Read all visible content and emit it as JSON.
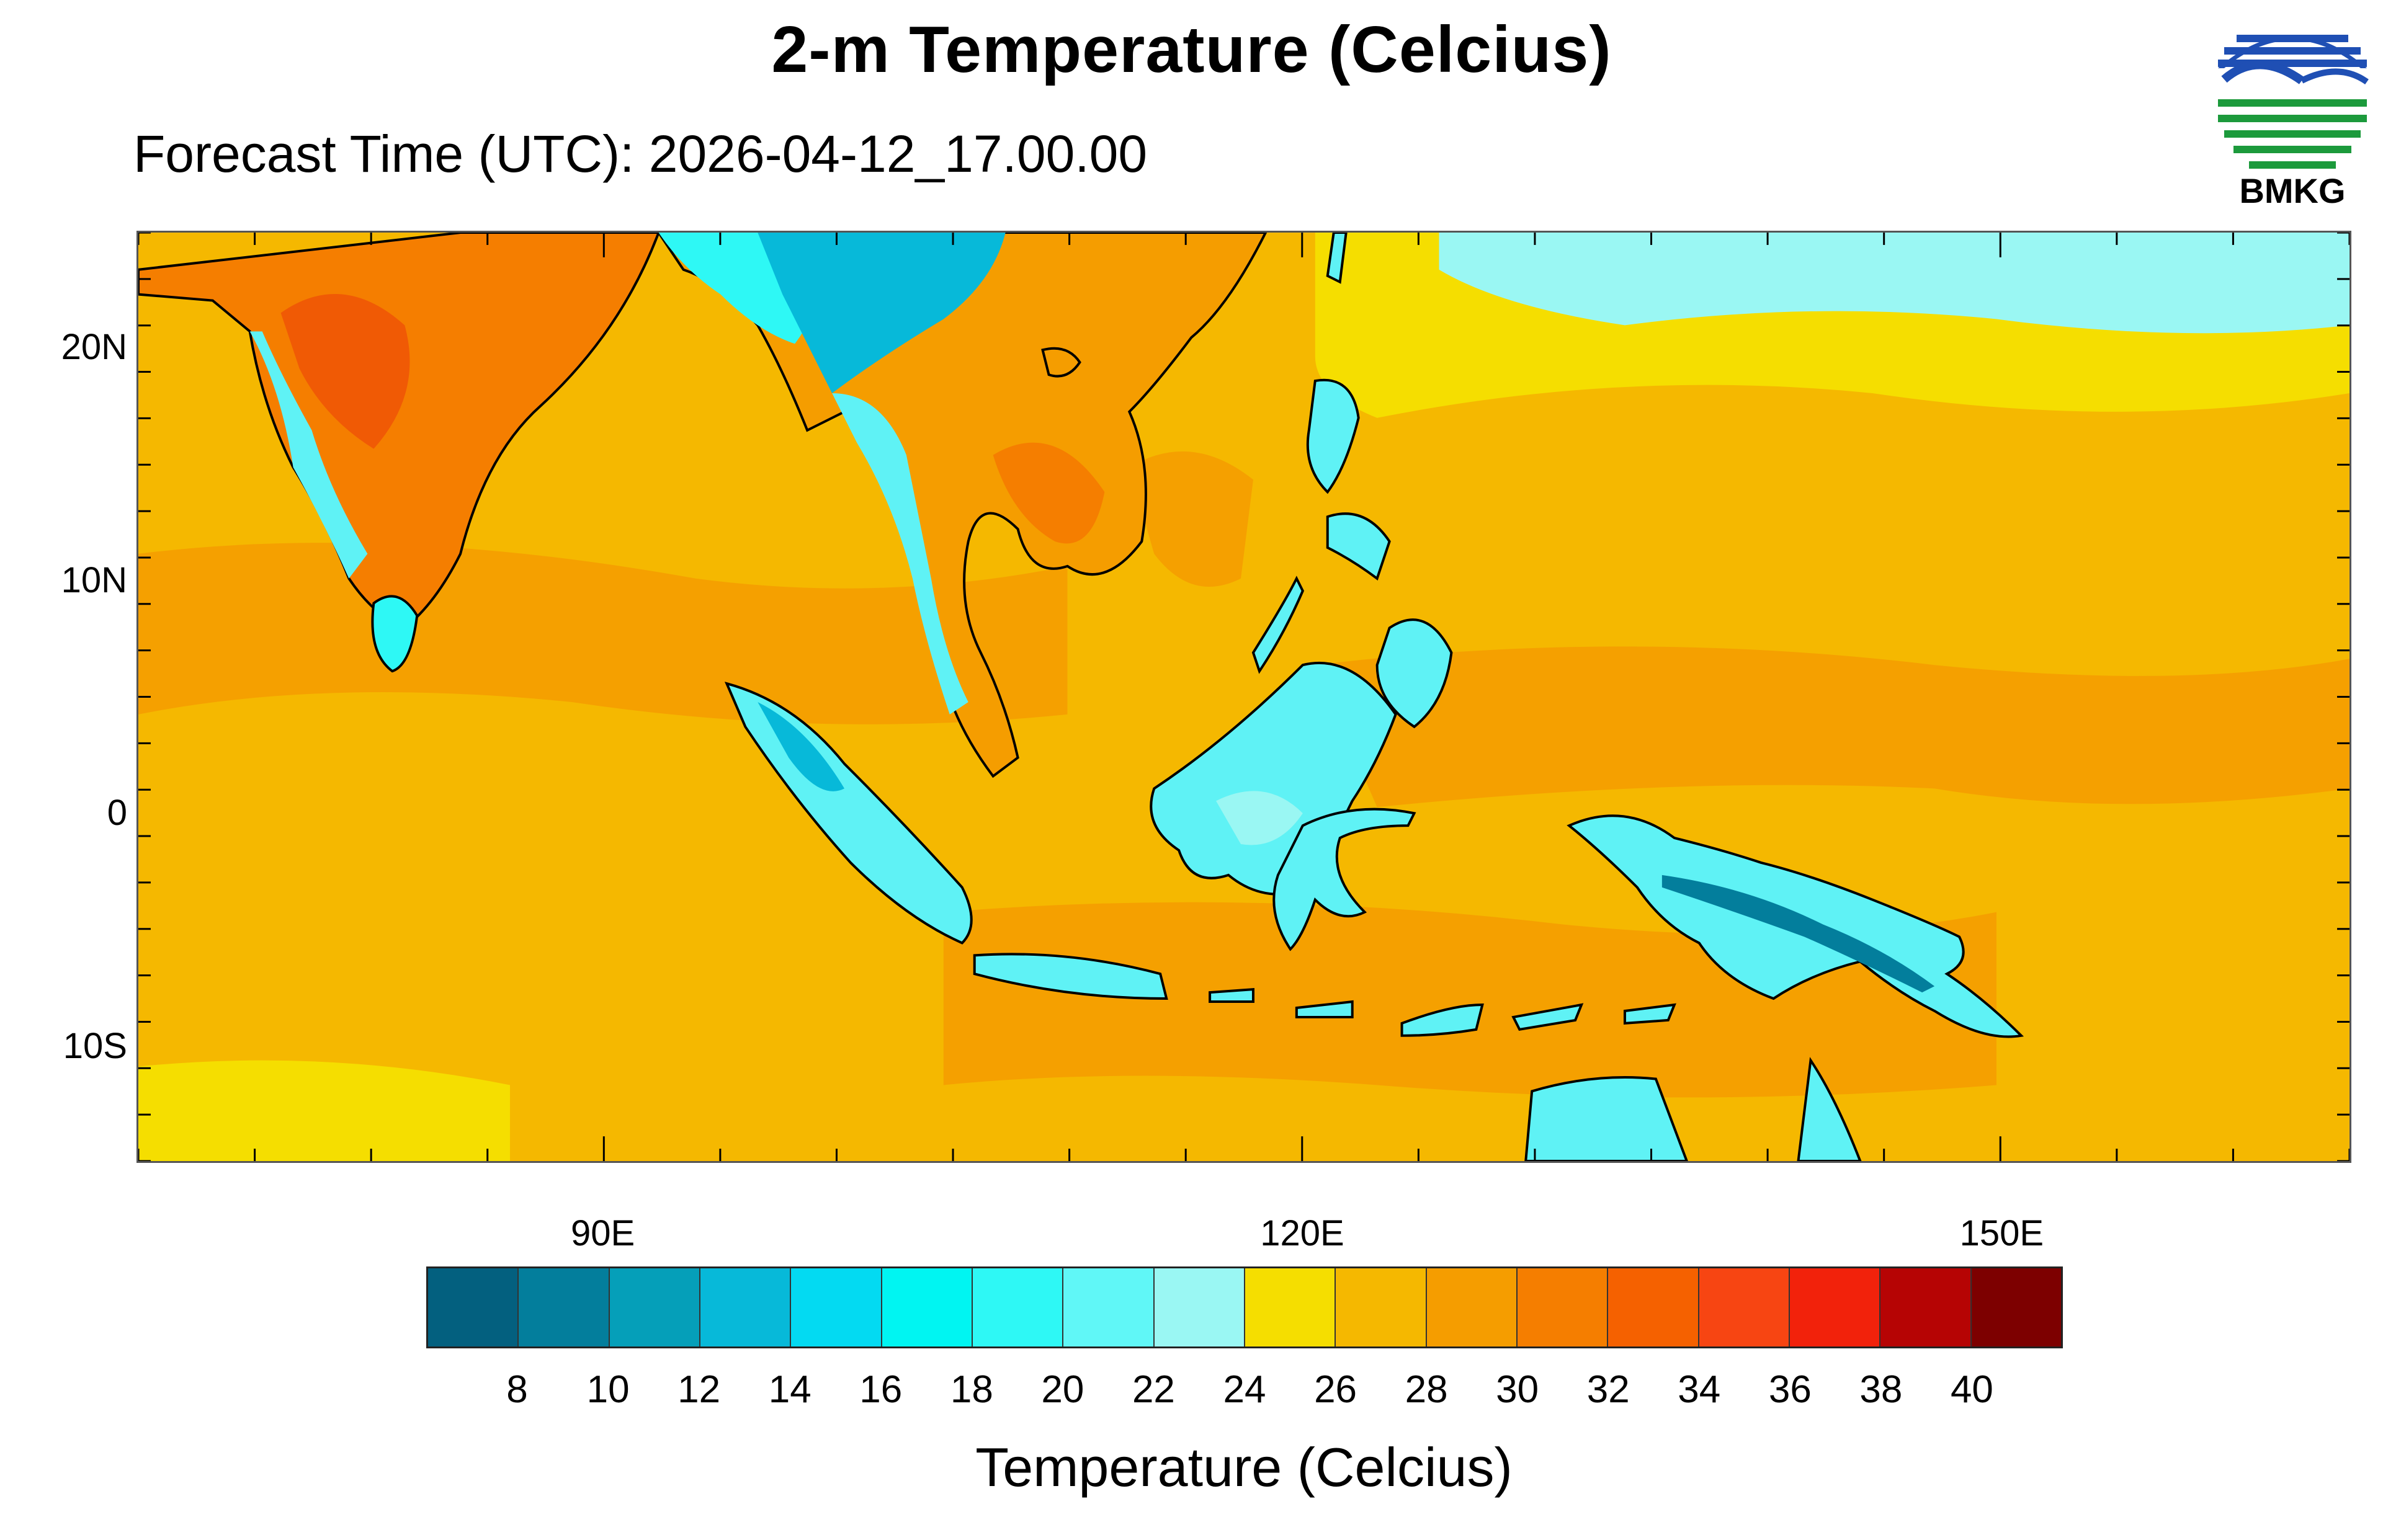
{
  "title": "2-m Temperature (Celcius)",
  "subtitle": "Forecast Time (UTC): 2026-04-12_17.00.00",
  "logo": {
    "text": "BMKG",
    "colors": {
      "blue": "#1f4fb4",
      "green": "#1c9a3c"
    }
  },
  "map": {
    "lon_range": [
      70,
      165
    ],
    "lat_range": [
      -15,
      25
    ],
    "y_ticks": [
      {
        "lat": 20,
        "label": "20N"
      },
      {
        "lat": 10,
        "label": "10N"
      },
      {
        "lat": 0,
        "label": "0"
      },
      {
        "lat": -10,
        "label": "10S"
      }
    ],
    "x_ticks": [
      {
        "lon": 90,
        "label": "90E"
      },
      {
        "lon": 120,
        "label": "120E"
      },
      {
        "lon": 150,
        "label": "150E"
      }
    ],
    "ocean_color": "#f5b800",
    "land_cool_color": "#5ff2f5",
    "hot_color": "#f05a05"
  },
  "colorbar": {
    "title": "Temperature (Celcius)",
    "colors": [
      "#03607f",
      "#037e9c",
      "#059fb9",
      "#07b9d9",
      "#03daf2",
      "#00f5f2",
      "#2ef8f5",
      "#60f7f7",
      "#9af7f3",
      "#f5de00",
      "#f5b800",
      "#f59d00",
      "#f57e00",
      "#f56100",
      "#f74512",
      "#f2220b",
      "#b60404",
      "#7d0000"
    ],
    "labels": [
      "8",
      "10",
      "12",
      "14",
      "16",
      "18",
      "20",
      "22",
      "24",
      "26",
      "28",
      "30",
      "32",
      "34",
      "36",
      "38",
      "40"
    ]
  }
}
